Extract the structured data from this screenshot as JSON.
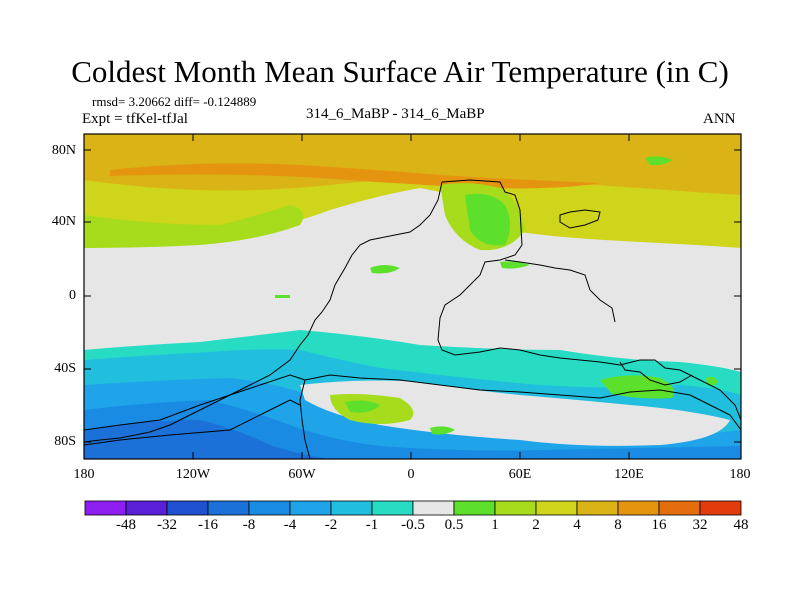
{
  "title": "Coldest Month Mean Surface Air Temperature (in C)",
  "stats_line": "rmsd= 3.20662  diff= -0.124889",
  "experiment_line": "Expt = tfKel-tfJal",
  "center_label": "314_6_MaBP - 314_6_MaBP",
  "season_label": "ANN",
  "y_tick_labels": [
    "80N",
    "40N",
    "0",
    "40S",
    "80S"
  ],
  "x_tick_labels": [
    "180",
    "120W",
    "60W",
    "0",
    "60E",
    "120E",
    "180"
  ],
  "colorbar": {
    "labels": [
      "-48",
      "-32",
      "-16",
      "-8",
      "-4",
      "-2",
      "-1",
      "-0.5",
      "0.5",
      "1",
      "2",
      "4",
      "8",
      "16",
      "32",
      "48"
    ],
    "colors": [
      "#8f1ff0",
      "#5a20d8",
      "#1f50d0",
      "#1b71d8",
      "#1a8be3",
      "#1fa4ea",
      "#21bedd",
      "#28dcc4",
      "#e6e6e6",
      "#5ce02c",
      "#a6dc1c",
      "#cfd51a",
      "#dab416",
      "#e59410",
      "#e46d0e",
      "#e23c0a"
    ]
  }
}
